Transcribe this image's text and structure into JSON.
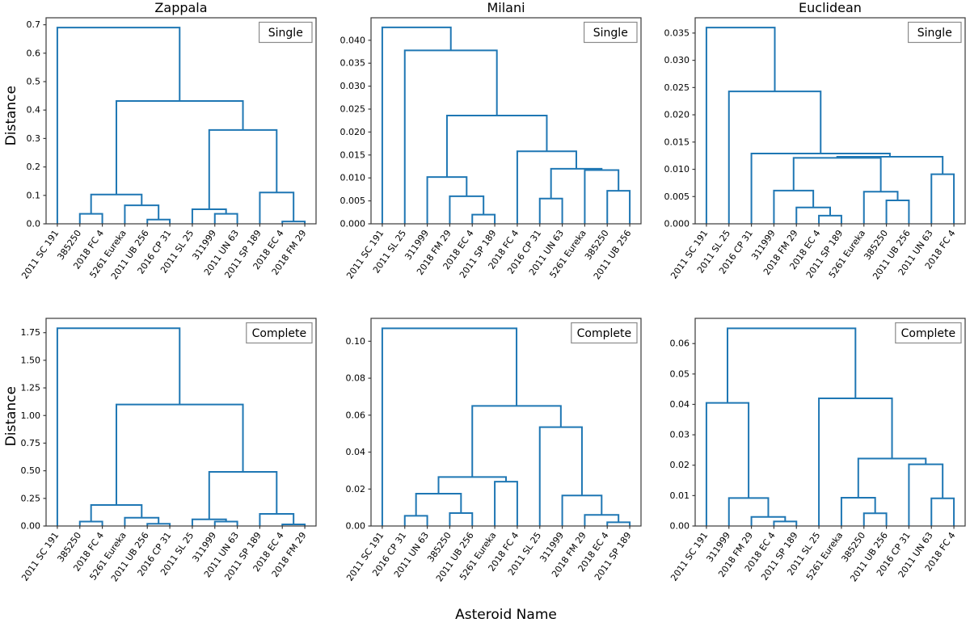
{
  "figure": {
    "xlabel": "Asteroid Name",
    "ylabel": "Distance",
    "background": "#ffffff"
  },
  "style": {
    "line_color": "#1f77b4",
    "spine_color": "#3a3a3a",
    "tick_color": "#3a3a3a",
    "text_color": "#000000",
    "legend_border_color": "#8a8a8a",
    "legend_fill": "#ffffff",
    "line_width": 2
  },
  "chart_data": [
    {
      "type": "dendrogram",
      "title": "Zappala",
      "legend": "Single",
      "row": 0,
      "col": 0,
      "ylim": [
        0,
        0.7245
      ],
      "yticks": [
        "0.0",
        "0.1",
        "0.2",
        "0.3",
        "0.4",
        "0.5",
        "0.6",
        "0.7"
      ],
      "leaves": [
        "2011 SC 191",
        "385250",
        "2018 FC 4",
        "5261 Eureka",
        "2011 UB 256",
        "2016 CP 31",
        "2011 SL 25",
        "311999",
        "2011 UN 63",
        "2011 SP 189",
        "2018 EC 4",
        "2018 FM 29"
      ],
      "merges": [
        {
          "a": 1,
          "b": 2,
          "h": 0.035
        },
        {
          "a": 4,
          "b": 5,
          "h": 0.015
        },
        {
          "a": 3,
          "b": 13,
          "h": 0.065
        },
        {
          "a": 12,
          "b": 14,
          "h": 0.103
        },
        {
          "a": 7,
          "b": 8,
          "h": 0.035
        },
        {
          "a": 6,
          "b": 16,
          "h": 0.051
        },
        {
          "a": 10,
          "b": 11,
          "h": 0.008
        },
        {
          "a": 9,
          "b": 18,
          "h": 0.11
        },
        {
          "a": 17,
          "b": 19,
          "h": 0.33
        },
        {
          "a": 15,
          "b": 20,
          "h": 0.432
        },
        {
          "a": 0,
          "b": 21,
          "h": 0.69
        }
      ]
    },
    {
      "type": "dendrogram",
      "title": "Milani",
      "legend": "Single",
      "row": 0,
      "col": 1,
      "ylim": [
        0,
        0.0449
      ],
      "yticks": [
        "0.000",
        "0.005",
        "0.010",
        "0.015",
        "0.020",
        "0.025",
        "0.030",
        "0.035",
        "0.040"
      ],
      "leaves": [
        "2011 SC 191",
        "2011 SL 25",
        "311999",
        "2018 FM 29",
        "2018 EC 4",
        "2011 SP 189",
        "2018 FC 4",
        "2016 CP 31",
        "2011 UN 63",
        "5261 Eureka",
        "385250",
        "2011 UB 256"
      ],
      "merges": [
        {
          "a": 4,
          "b": 5,
          "h": 0.002
        },
        {
          "a": 3,
          "b": 12,
          "h": 0.006
        },
        {
          "a": 2,
          "b": 13,
          "h": 0.0102
        },
        {
          "a": 7,
          "b": 8,
          "h": 0.0055
        },
        {
          "a": 10,
          "b": 11,
          "h": 0.0072
        },
        {
          "a": 9,
          "b": 16,
          "h": 0.0117
        },
        {
          "a": 15,
          "b": 17,
          "h": 0.012
        },
        {
          "a": 6,
          "b": 18,
          "h": 0.0158
        },
        {
          "a": 14,
          "b": 19,
          "h": 0.0236
        },
        {
          "a": 1,
          "b": 20,
          "h": 0.0378
        },
        {
          "a": 0,
          "b": 21,
          "h": 0.0428
        }
      ]
    },
    {
      "type": "dendrogram",
      "title": "Euclidean",
      "legend": "Single",
      "row": 0,
      "col": 2,
      "ylim": [
        0,
        0.0378
      ],
      "yticks": [
        "0.000",
        "0.005",
        "0.010",
        "0.015",
        "0.020",
        "0.025",
        "0.030",
        "0.035"
      ],
      "leaves": [
        "2011 SC 191",
        "2011 SL 25",
        "2016 CP 31",
        "311999",
        "2018 FM 29",
        "2018 EC 4",
        "2011 SP 189",
        "5261 Eureka",
        "385250",
        "2011 UB 256",
        "2011 UN 63",
        "2018 FC 4"
      ],
      "merges": [
        {
          "a": 5,
          "b": 6,
          "h": 0.0015
        },
        {
          "a": 4,
          "b": 12,
          "h": 0.003
        },
        {
          "a": 3,
          "b": 13,
          "h": 0.0061
        },
        {
          "a": 8,
          "b": 9,
          "h": 0.0043
        },
        {
          "a": 7,
          "b": 15,
          "h": 0.0059
        },
        {
          "a": 10,
          "b": 11,
          "h": 0.0091
        },
        {
          "a": 14,
          "b": 16,
          "h": 0.0121
        },
        {
          "a": 18,
          "b": 17,
          "h": 0.0123
        },
        {
          "a": 2,
          "b": 19,
          "h": 0.0129
        },
        {
          "a": 1,
          "b": 20,
          "h": 0.0243
        },
        {
          "a": 0,
          "b": 21,
          "h": 0.036
        }
      ]
    },
    {
      "type": "dendrogram",
      "title": "",
      "legend": "Complete",
      "row": 1,
      "col": 0,
      "ylim": [
        0,
        1.8795
      ],
      "yticks": [
        "0.00",
        "0.25",
        "0.50",
        "0.75",
        "1.00",
        "1.25",
        "1.50",
        "1.75"
      ],
      "leaves": [
        "2011 SC 191",
        "385250",
        "2018 FC 4",
        "5261 Eureka",
        "2011 UB 256",
        "2016 CP 31",
        "2011 SL 25",
        "311999",
        "2011 UN 63",
        "2011 SP 189",
        "2018 EC 4",
        "2018 FM 29"
      ],
      "merges": [
        {
          "a": 1,
          "b": 2,
          "h": 0.04
        },
        {
          "a": 4,
          "b": 5,
          "h": 0.02
        },
        {
          "a": 3,
          "b": 13,
          "h": 0.075
        },
        {
          "a": 12,
          "b": 14,
          "h": 0.19
        },
        {
          "a": 7,
          "b": 8,
          "h": 0.04
        },
        {
          "a": 6,
          "b": 16,
          "h": 0.06
        },
        {
          "a": 10,
          "b": 11,
          "h": 0.015
        },
        {
          "a": 9,
          "b": 18,
          "h": 0.11
        },
        {
          "a": 17,
          "b": 19,
          "h": 0.49
        },
        {
          "a": 15,
          "b": 20,
          "h": 1.1
        },
        {
          "a": 0,
          "b": 21,
          "h": 1.79
        }
      ]
    },
    {
      "type": "dendrogram",
      "title": "",
      "legend": "Complete",
      "row": 1,
      "col": 1,
      "ylim": [
        0,
        0.1124
      ],
      "yticks": [
        "0.00",
        "0.02",
        "0.04",
        "0.06",
        "0.08",
        "0.10"
      ],
      "leaves": [
        "2011 SC 191",
        "2016 CP 31",
        "2011 UN 63",
        "385250",
        "2011 UB 256",
        "5261 Eureka",
        "2018 FC 4",
        "2011 SL 25",
        "311999",
        "2018 FM 29",
        "2018 EC 4",
        "2011 SP 189"
      ],
      "merges": [
        {
          "a": 1,
          "b": 2,
          "h": 0.0055
        },
        {
          "a": 3,
          "b": 4,
          "h": 0.007
        },
        {
          "a": 12,
          "b": 13,
          "h": 0.0175
        },
        {
          "a": 5,
          "b": 6,
          "h": 0.024
        },
        {
          "a": 14,
          "b": 15,
          "h": 0.0265
        },
        {
          "a": 10,
          "b": 11,
          "h": 0.002
        },
        {
          "a": 9,
          "b": 17,
          "h": 0.006
        },
        {
          "a": 8,
          "b": 18,
          "h": 0.0165
        },
        {
          "a": 7,
          "b": 19,
          "h": 0.0535
        },
        {
          "a": 16,
          "b": 20,
          "h": 0.065
        },
        {
          "a": 0,
          "b": 21,
          "h": 0.107
        }
      ]
    },
    {
      "type": "dendrogram",
      "title": "",
      "legend": "Complete",
      "row": 1,
      "col": 2,
      "ylim": [
        0,
        0.0683
      ],
      "yticks": [
        "0.00",
        "0.01",
        "0.02",
        "0.03",
        "0.04",
        "0.05",
        "0.06"
      ],
      "leaves": [
        "2011 SC 191",
        "311999",
        "2018 FM 29",
        "2018 EC 4",
        "2011 SP 189",
        "2011 SL 25",
        "5261 Eureka",
        "385250",
        "2011 UB 256",
        "2016 CP 31",
        "2011 UN 63",
        "2018 FC 4"
      ],
      "merges": [
        {
          "a": 3,
          "b": 4,
          "h": 0.0015
        },
        {
          "a": 2,
          "b": 12,
          "h": 0.003
        },
        {
          "a": 1,
          "b": 13,
          "h": 0.0092
        },
        {
          "a": 0,
          "b": 14,
          "h": 0.0405
        },
        {
          "a": 7,
          "b": 8,
          "h": 0.0042
        },
        {
          "a": 6,
          "b": 16,
          "h": 0.0093
        },
        {
          "a": 10,
          "b": 11,
          "h": 0.0091
        },
        {
          "a": 9,
          "b": 18,
          "h": 0.0203
        },
        {
          "a": 17,
          "b": 19,
          "h": 0.0222
        },
        {
          "a": 5,
          "b": 20,
          "h": 0.042
        },
        {
          "a": 15,
          "b": 21,
          "h": 0.065
        }
      ]
    }
  ]
}
